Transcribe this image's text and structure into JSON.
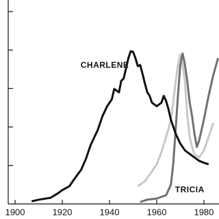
{
  "chart_data": {
    "type": "line",
    "annotations": [
      {
        "text": "CHARLENE",
        "x": 1938,
        "y": 3.6
      },
      {
        "text": "TRICIA",
        "x": 1974,
        "y": 0.36
      }
    ],
    "xlim": [
      1893.6,
      1986.4
    ],
    "xticks": [
      1900,
      1920,
      1940,
      1960,
      1980
    ],
    "ylim": [
      0,
      5.3
    ],
    "yticks": [
      1,
      2,
      3,
      4,
      5
    ],
    "series": [
      {
        "color": "#c8c8c8",
        "x": [
          1952,
          1955,
          1958,
          1960,
          1962,
          1964,
          1966,
          1967,
          1968,
          1969,
          1970,
          1971,
          1972,
          1973,
          1974,
          1975,
          1976,
          1978,
          1980,
          1982,
          1984
        ],
        "values": [
          0.46,
          0.59,
          0.85,
          1.03,
          1.35,
          1.74,
          2.19,
          2.63,
          3.17,
          3.61,
          3.88,
          3.61,
          3.17,
          2.28,
          1.74,
          1.48,
          1.3,
          1.21,
          1.39,
          1.74,
          2.1
        ]
      },
      {
        "color": "#707070",
        "x": [
          1953,
          1956,
          1960,
          1964,
          1966,
          1967,
          1968,
          1969,
          1970,
          1971,
          1972,
          1973,
          1974,
          1975,
          1976,
          1977,
          1978,
          1980,
          1982,
          1984,
          1986
        ],
        "values": [
          0.05,
          0.11,
          0.14,
          0.23,
          0.5,
          1.03,
          1.92,
          2.81,
          3.61,
          3.91,
          3.61,
          3.17,
          2.63,
          2.28,
          1.83,
          1.48,
          1.65,
          2.19,
          2.81,
          3.35,
          3.79
        ]
      },
      {
        "color": "#111111",
        "x": [
          1907,
          1910,
          1915,
          1918,
          1920,
          1923,
          1925,
          1928,
          1930,
          1932,
          1935,
          1937,
          1939,
          1941,
          1942,
          1944,
          1945,
          1946,
          1947,
          1948,
          1949,
          1950,
          1951,
          1952,
          1953,
          1954,
          1955,
          1956,
          1957,
          1958,
          1960,
          1962,
          1963,
          1964,
          1965,
          1966,
          1968,
          1970,
          1972,
          1974,
          1976,
          1978,
          1980,
          1982
        ],
        "values": [
          0.07,
          0.11,
          0.16,
          0.27,
          0.36,
          0.46,
          0.64,
          0.89,
          1.17,
          1.53,
          1.92,
          2.28,
          2.54,
          2.72,
          2.99,
          2.9,
          3.2,
          3.26,
          3.52,
          3.79,
          3.97,
          3.95,
          3.79,
          3.58,
          3.61,
          3.38,
          3.13,
          2.9,
          2.81,
          2.63,
          2.54,
          2.63,
          2.81,
          2.67,
          2.46,
          2.19,
          1.83,
          1.57,
          1.39,
          1.3,
          1.21,
          1.12,
          1.07,
          1.03
        ]
      }
    ]
  }
}
